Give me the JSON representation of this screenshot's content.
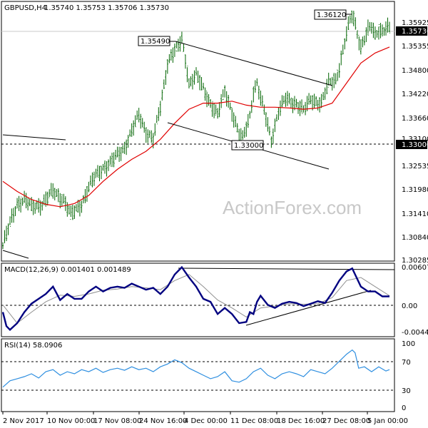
{
  "header": {
    "symbol": "GBPUSD,H4",
    "ohlc": "1.35740 1.35753 1.35706 1.35730"
  },
  "watermark": "ActionForex.com",
  "colors": {
    "background": "#ffffff",
    "price_bars": "#006400",
    "ema": "#e00000",
    "macd_line": "#000080",
    "macd_signal": "#909090",
    "rsi_line": "#2f8fe0",
    "trendlines": "#000000",
    "grid_dashed": "#000000"
  },
  "chart_data": [
    {
      "type": "line",
      "title": "",
      "instrument": "GBPUSD",
      "timeframe": "H4",
      "ohlc_last": {
        "open": 1.3574,
        "high": 1.35753,
        "low": 1.35706,
        "close": 1.3573
      },
      "ylim": [
        1.3,
        1.364
      ],
      "yticks": [
        "1.35925",
        "1.35355",
        "1.34800",
        "1.34220",
        "1.33660",
        "1.33100",
        "1.32535",
        "1.31980",
        "1.31410",
        "1.30840",
        "1.30285"
      ],
      "last_price_label": "1.35730",
      "horizontal_level_label": "1.33000",
      "x_tick_labels": [
        "2 Nov 2017",
        "10 Nov 00:00",
        "17 Nov 08:00",
        "24 Nov 16:00",
        "4 Dec 00:00",
        "11 Dec 08:00",
        "18 Dec 16:00",
        "27 Dec 08:00",
        "5 Jan 00:00"
      ],
      "annotations": [
        "1.35490",
        "1.33000",
        "1.36120"
      ],
      "price_path": {
        "x": [
          0,
          10,
          20,
          30,
          40,
          55,
          70,
          85,
          95,
          100,
          110,
          120,
          130,
          140,
          150,
          170,
          180,
          185,
          190,
          200,
          210,
          220,
          230,
          235,
          245,
          250,
          255,
          260,
          270,
          290,
          300,
          310,
          320,
          330,
          335,
          340,
          345,
          350,
          355,
          360,
          365,
          375,
          385,
          395,
          410,
          420,
          430,
          445,
          455,
          465,
          470,
          475,
          480,
          484,
          488,
          492,
          496,
          500,
          505,
          510,
          515,
          520,
          525,
          530,
          535,
          540
        ],
        "y": [
          1.3035,
          1.309,
          1.314,
          1.315,
          1.313,
          1.314,
          1.317,
          1.315,
          1.311,
          1.312,
          1.314,
          1.318,
          1.321,
          1.323,
          1.324,
          1.328,
          1.332,
          1.334,
          1.336,
          1.332,
          1.33,
          1.338,
          1.349,
          1.351,
          1.353,
          1.3549,
          1.35,
          1.344,
          1.346,
          1.339,
          1.336,
          1.342,
          1.337,
          1.331,
          1.33,
          1.333,
          1.336,
          1.342,
          1.344,
          1.34,
          1.337,
          1.33,
          1.337,
          1.34,
          1.339,
          1.337,
          1.34,
          1.339,
          1.344,
          1.345,
          1.348,
          1.352,
          1.356,
          1.359,
          1.3612,
          1.359,
          1.356,
          1.353,
          1.355,
          1.357,
          1.358,
          1.356,
          1.3575,
          1.357,
          1.3578,
          1.3573
        ]
      },
      "ema_path": {
        "x": [
          0,
          20,
          40,
          60,
          80,
          100,
          120,
          140,
          160,
          180,
          200,
          220,
          240,
          260,
          280,
          300,
          320,
          340,
          360,
          380,
          400,
          420,
          440,
          460,
          480,
          500,
          520,
          540
        ],
        "y": [
          1.3195,
          1.317,
          1.315,
          1.3138,
          1.3132,
          1.314,
          1.316,
          1.3195,
          1.3225,
          1.325,
          1.327,
          1.33,
          1.334,
          1.3375,
          1.339,
          1.339,
          1.3395,
          1.3385,
          1.338,
          1.338,
          1.3378,
          1.3375,
          1.3378,
          1.339,
          1.344,
          1.349,
          1.3515,
          1.353
        ]
      }
    },
    {
      "type": "line",
      "title": "MACD(12,26,9) 0.001401 0.001489",
      "ylim": [
        -0.005,
        0.0065
      ],
      "yticks": [
        "0.006073",
        "0.00",
        "-0.004441"
      ],
      "series": [
        {
          "name": "MACD(12,26,9)",
          "x": [
            0,
            5,
            10,
            20,
            30,
            40,
            50,
            60,
            70,
            80,
            90,
            100,
            110,
            120,
            130,
            140,
            150,
            160,
            170,
            180,
            190,
            200,
            210,
            220,
            230,
            240,
            250,
            260,
            270,
            280,
            290,
            300,
            310,
            320,
            330,
            340,
            345,
            350,
            355,
            360,
            370,
            380,
            390,
            400,
            410,
            420,
            430,
            440,
            450,
            460,
            470,
            480,
            488,
            492,
            500,
            510,
            520,
            530,
            540
          ],
          "y": [
            -0.0012,
            -0.0035,
            -0.0041,
            -0.003,
            -0.0012,
            0.0002,
            0.001,
            0.0018,
            0.003,
            0.0008,
            0.0018,
            0.001,
            0.001,
            0.0022,
            0.003,
            0.0022,
            0.0028,
            0.003,
            0.0028,
            0.0035,
            0.003,
            0.0025,
            0.0028,
            0.0018,
            0.003,
            0.005,
            0.0062,
            0.0045,
            0.003,
            0.001,
            0.0005,
            -0.0015,
            -0.0005,
            -0.0015,
            -0.003,
            -0.0028,
            -0.0012,
            -0.0015,
            0.0005,
            0.0015,
            0.0,
            -0.0005,
            0.0002,
            0.0005,
            0.0003,
            -0.0002,
            0.0002,
            0.0006,
            0.0003,
            0.002,
            0.004,
            0.0055,
            0.006,
            0.005,
            0.003,
            0.0022,
            0.0022,
            0.0014,
            0.0014
          ]
        },
        {
          "name": "Signal",
          "x": [
            0,
            20,
            40,
            60,
            80,
            100,
            120,
            140,
            160,
            180,
            200,
            220,
            240,
            260,
            280,
            300,
            320,
            340,
            360,
            380,
            400,
            420,
            440,
            460,
            480,
            500,
            520,
            540
          ],
          "y": [
            0.0,
            -0.003,
            -0.0012,
            0.0005,
            0.0016,
            0.0014,
            0.0018,
            0.0024,
            0.0026,
            0.003,
            0.0028,
            0.0025,
            0.004,
            0.005,
            0.003,
            0.0008,
            -0.0005,
            -0.002,
            -0.0005,
            -0.0002,
            0.0002,
            0.0001,
            0.0002,
            0.0012,
            0.004,
            0.0045,
            0.003,
            0.0015
          ]
        }
      ]
    },
    {
      "type": "line",
      "title": "RSI(14) 58.0906",
      "ylim": [
        0,
        100
      ],
      "yticks": [
        "100",
        "70",
        "30",
        "0"
      ],
      "series": [
        {
          "name": "RSI(14)",
          "x": [
            0,
            10,
            20,
            30,
            40,
            50,
            60,
            70,
            80,
            90,
            100,
            110,
            120,
            130,
            140,
            150,
            160,
            170,
            180,
            190,
            200,
            210,
            220,
            230,
            240,
            250,
            260,
            270,
            280,
            290,
            300,
            310,
            320,
            330,
            340,
            350,
            360,
            370,
            380,
            390,
            400,
            410,
            420,
            430,
            440,
            450,
            460,
            470,
            480,
            488,
            492,
            497,
            505,
            515,
            525,
            535,
            540
          ],
          "y": [
            33,
            42,
            45,
            48,
            52,
            46,
            55,
            58,
            50,
            55,
            52,
            58,
            55,
            60,
            54,
            58,
            60,
            57,
            62,
            58,
            60,
            55,
            62,
            66,
            72,
            68,
            60,
            55,
            50,
            45,
            48,
            55,
            42,
            40,
            45,
            55,
            60,
            50,
            45,
            52,
            55,
            52,
            48,
            58,
            55,
            52,
            60,
            70,
            80,
            86,
            82,
            60,
            62,
            55,
            62,
            56,
            58
          ]
        }
      ]
    }
  ]
}
